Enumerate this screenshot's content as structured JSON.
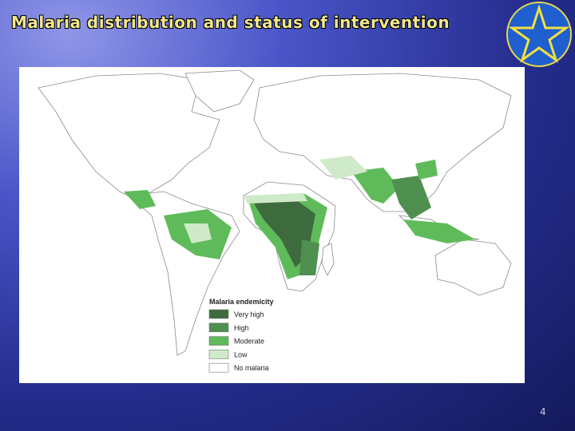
{
  "slide": {
    "title": "Malaria distribution and status of intervention",
    "page_number": 4
  },
  "map": {
    "legend": {
      "title": "Malaria endemicity",
      "items": [
        {
          "label": "Very high",
          "color": "#3d6b3d"
        },
        {
          "label": "High",
          "color": "#4f8f4f"
        },
        {
          "label": "Moderate",
          "color": "#5fbb5a"
        },
        {
          "label": "Low",
          "color": "#cfeac8"
        },
        {
          "label": "No malaria",
          "color": "#ffffff"
        }
      ]
    }
  }
}
